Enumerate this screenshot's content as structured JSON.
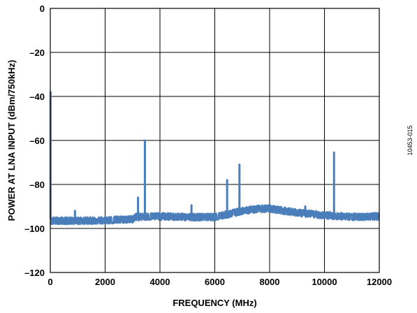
{
  "chart_data": {
    "type": "line",
    "title": "",
    "xlabel": "FREQUENCY (MHz)",
    "ylabel": "POWER AT LNA INPUT (dBm/750kHz)",
    "xlim": [
      0,
      12000
    ],
    "ylim": [
      -120,
      0
    ],
    "xticks": [
      0,
      2000,
      4000,
      6000,
      8000,
      10000,
      12000
    ],
    "yticks": [
      0,
      -20,
      -40,
      -60,
      -80,
      -100,
      -120
    ],
    "xtick_labels": [
      "0",
      "2000",
      "4000",
      "6000",
      "8000",
      "10000",
      "12000"
    ],
    "ytick_labels": [
      "0",
      "–20",
      "–40",
      "–60",
      "–80",
      "–100",
      "–120"
    ],
    "grid": true,
    "line_color": "#4a7ebb",
    "figure_id": "10453-015",
    "noise_floor": {
      "x": [
        0,
        1000,
        2000,
        3000,
        3100,
        4000,
        5000,
        6000,
        6500,
        7000,
        7500,
        8000,
        9000,
        10000,
        11000,
        12000
      ],
      "y": [
        -96.5,
        -96.5,
        -96.3,
        -95.8,
        -94.8,
        -94.5,
        -94.8,
        -94.8,
        -93.5,
        -92.0,
        -91.2,
        -91.0,
        -92.8,
        -94.0,
        -94.8,
        -94.5
      ],
      "spread": 1.8
    },
    "spurs": [
      {
        "x": 10,
        "y": -38
      },
      {
        "x": 900,
        "y": -92
      },
      {
        "x": 3200,
        "y": -86
      },
      {
        "x": 3450,
        "y": -60
      },
      {
        "x": 5150,
        "y": -89.5
      },
      {
        "x": 6450,
        "y": -78
      },
      {
        "x": 6900,
        "y": -71
      },
      {
        "x": 9300,
        "y": -90
      },
      {
        "x": 10350,
        "y": -65.5
      }
    ]
  }
}
